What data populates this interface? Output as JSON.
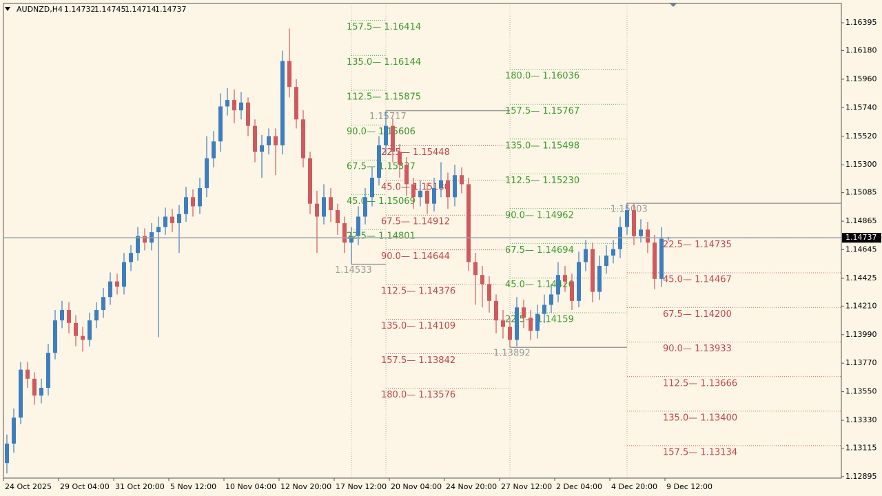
{
  "chart_data": {
    "type": "candlestick",
    "symbol": "AUDNZD,H4",
    "colors": {
      "up": "#3d7ebf",
      "down": "#cf5a5e",
      "pivot": "#9a9a9a"
    },
    "ylim": [
      1.12884,
      1.16544
    ],
    "yticks": [
      1.16395,
      {
        "value": 1.1618,
        "label": "1.16180"
      },
      {
        "value": 1.1596,
        "label": "1.15960"
      },
      {
        "value": 1.1574,
        "label": "1.15740"
      },
      {
        "value": 1.1552,
        "label": "1.15520"
      },
      {
        "value": 1.153,
        "label": "1.15300"
      },
      1.15085,
      1.14865,
      1.14645,
      1.14425,
      {
        "value": 1.1421,
        "label": "1.14210"
      },
      {
        "value": 1.1399,
        "label": "1.13990"
      },
      {
        "value": 1.1377,
        "label": "1.13770"
      },
      {
        "value": 1.1355,
        "label": "1.13550"
      },
      {
        "value": 1.1333,
        "label": "1.13330"
      },
      1.13115,
      1.12895
    ],
    "xticks": [
      {
        "value": 0,
        "label": "24 Oct 2025"
      },
      {
        "value": 8,
        "label": "29 Oct 04:00"
      },
      {
        "value": 16,
        "label": "31 Oct 20:00"
      },
      {
        "value": 24,
        "label": "5 Nov 12:00"
      },
      {
        "value": 32,
        "label": "10 Nov 04:00"
      },
      {
        "value": 40,
        "label": "12 Nov 20:00"
      },
      {
        "value": 48,
        "label": "17 Nov 12:00"
      },
      {
        "value": 56,
        "label": "20 Nov 04:00"
      },
      {
        "value": 64,
        "label": "24 Nov 20:00"
      },
      {
        "value": 72,
        "label": "27 Nov 12:00"
      },
      {
        "value": 80,
        "label": "2 Dec 04:00"
      },
      {
        "value": 88,
        "label": "4 Dec 20:00"
      },
      {
        "value": 96,
        "label": "9 Dec 12:00"
      }
    ],
    "ohlc": [
      [
        1.13,
        1.1322,
        1.1292,
        1.1315
      ],
      [
        1.1315,
        1.1342,
        1.1308,
        1.1335
      ],
      [
        1.1335,
        1.1378,
        1.133,
        1.1372
      ],
      [
        1.1372,
        1.1378,
        1.1358,
        1.1365
      ],
      [
        1.1365,
        1.137,
        1.1345,
        1.1352
      ],
      [
        1.1352,
        1.1365,
        1.1346,
        1.1358
      ],
      [
        1.1358,
        1.1392,
        1.1352,
        1.1385
      ],
      [
        1.1385,
        1.1418,
        1.138,
        1.141
      ],
      [
        1.141,
        1.1425,
        1.1404,
        1.1418
      ],
      [
        1.1418,
        1.1424,
        1.14,
        1.1408
      ],
      [
        1.1408,
        1.1414,
        1.139,
        1.1398
      ],
      [
        1.1398,
        1.1405,
        1.1386,
        1.1395
      ],
      [
        1.1395,
        1.1416,
        1.139,
        1.141
      ],
      [
        1.141,
        1.1424,
        1.1404,
        1.1418
      ],
      [
        1.1418,
        1.1435,
        1.1412,
        1.1428
      ],
      [
        1.1428,
        1.1447,
        1.1422,
        1.144
      ],
      [
        1.144,
        1.1446,
        1.143,
        1.1436
      ],
      [
        1.1436,
        1.1462,
        1.143,
        1.1455
      ],
      [
        1.1455,
        1.1468,
        1.1448,
        1.1462
      ],
      [
        1.1462,
        1.1482,
        1.1456,
        1.1475
      ],
      [
        1.1475,
        1.1481,
        1.1464,
        1.147
      ],
      [
        1.147,
        1.1485,
        1.1464,
        1.1478
      ],
      [
        1.1478,
        1.149,
        1.1397,
        1.1482
      ],
      [
        1.1482,
        1.1497,
        1.1476,
        1.149
      ],
      [
        1.149,
        1.1496,
        1.1478,
        1.1485
      ],
      [
        1.1485,
        1.1499,
        1.1462,
        1.1492
      ],
      [
        1.1492,
        1.1513,
        1.1486,
        1.1505
      ],
      [
        1.1505,
        1.1511,
        1.149,
        1.1498
      ],
      [
        1.1498,
        1.152,
        1.1492,
        1.1512
      ],
      [
        1.1512,
        1.1552,
        1.1505,
        1.1535
      ],
      [
        1.1535,
        1.1556,
        1.1528,
        1.1548
      ],
      [
        1.1548,
        1.1585,
        1.154,
        1.1575
      ],
      [
        1.1575,
        1.1589,
        1.1568,
        1.158
      ],
      [
        1.158,
        1.1588,
        1.1562,
        1.1572
      ],
      [
        1.1572,
        1.1586,
        1.1565,
        1.1578
      ],
      [
        1.1578,
        1.1582,
        1.1552,
        1.156
      ],
      [
        1.156,
        1.1565,
        1.1532,
        1.154
      ],
      [
        1.154,
        1.1553,
        1.152,
        1.1545
      ],
      [
        1.1545,
        1.1558,
        1.1538,
        1.1552
      ],
      [
        1.1552,
        1.1558,
        1.1522,
        1.1545
      ],
      [
        1.1545,
        1.1618,
        1.1538,
        1.161
      ],
      [
        1.161,
        1.1635,
        1.1582,
        1.159
      ],
      [
        1.159,
        1.1596,
        1.1558,
        1.1565
      ],
      [
        1.1565,
        1.1572,
        1.1528,
        1.1535
      ],
      [
        1.1535,
        1.154,
        1.1492,
        1.15
      ],
      [
        1.15,
        1.151,
        1.1462,
        1.149
      ],
      [
        1.149,
        1.1515,
        1.1484,
        1.1505
      ],
      [
        1.1505,
        1.1512,
        1.1486,
        1.1495
      ],
      [
        1.1495,
        1.15,
        1.1476,
        1.1485
      ],
      [
        1.1485,
        1.149,
        1.1462,
        1.147
      ],
      [
        1.147,
        1.1482,
        1.14533,
        1.1475
      ],
      [
        1.1475,
        1.1498,
        1.1468,
        1.149
      ],
      [
        1.149,
        1.1512,
        1.1484,
        1.1505
      ],
      [
        1.1505,
        1.1528,
        1.1498,
        1.152
      ],
      [
        1.152,
        1.1552,
        1.1514,
        1.1545
      ],
      [
        1.1545,
        1.15717,
        1.1538,
        1.156
      ],
      [
        1.156,
        1.1566,
        1.1532,
        1.154
      ],
      [
        1.154,
        1.1546,
        1.152,
        1.153
      ],
      [
        1.153,
        1.1536,
        1.1506,
        1.1515
      ],
      [
        1.1515,
        1.152,
        1.1496,
        1.1505
      ],
      [
        1.1505,
        1.1518,
        1.1498,
        1.151
      ],
      [
        1.151,
        1.1516,
        1.1492,
        1.15
      ],
      [
        1.15,
        1.152,
        1.1494,
        1.1512
      ],
      [
        1.1512,
        1.1532,
        1.1505,
        1.1518
      ],
      [
        1.1518,
        1.1524,
        1.1496,
        1.1505
      ],
      [
        1.1505,
        1.153,
        1.1498,
        1.1522
      ],
      [
        1.1522,
        1.1528,
        1.1508,
        1.1515
      ],
      [
        1.1515,
        1.152,
        1.1448,
        1.1455
      ],
      [
        1.1455,
        1.1462,
        1.1422,
        1.1445
      ],
      [
        1.1445,
        1.1452,
        1.142,
        1.1438
      ],
      [
        1.1438,
        1.1444,
        1.1416,
        1.1425
      ],
      [
        1.1425,
        1.143,
        1.14,
        1.141
      ],
      [
        1.141,
        1.1418,
        1.1396,
        1.1405
      ],
      [
        1.1405,
        1.1412,
        1.13892,
        1.1395
      ],
      [
        1.1395,
        1.1428,
        1.139,
        1.142
      ],
      [
        1.142,
        1.1426,
        1.1404,
        1.1412
      ],
      [
        1.1412,
        1.1418,
        1.1395,
        1.1402
      ],
      [
        1.1402,
        1.1422,
        1.1396,
        1.1415
      ],
      [
        1.1415,
        1.143,
        1.1408,
        1.1422
      ],
      [
        1.1422,
        1.1438,
        1.1416,
        1.143
      ],
      [
        1.143,
        1.1455,
        1.1424,
        1.1445
      ],
      [
        1.1445,
        1.1452,
        1.1432,
        1.144
      ],
      [
        1.144,
        1.1446,
        1.1418,
        1.1425
      ],
      [
        1.1425,
        1.1463,
        1.142,
        1.1455
      ],
      [
        1.1455,
        1.1472,
        1.1448,
        1.1465
      ],
      [
        1.1465,
        1.147,
        1.1424,
        1.1432
      ],
      [
        1.1432,
        1.146,
        1.1426,
        1.1452
      ],
      [
        1.1452,
        1.1468,
        1.1446,
        1.146
      ],
      [
        1.146,
        1.1472,
        1.1454,
        1.1465
      ],
      [
        1.1465,
        1.149,
        1.1458,
        1.1482
      ],
      [
        1.1482,
        1.15003,
        1.1476,
        1.1495
      ],
      [
        1.1495,
        1.15,
        1.1468,
        1.1475
      ],
      [
        1.1475,
        1.1488,
        1.147,
        1.148
      ],
      [
        1.148,
        1.1486,
        1.1462,
        1.147
      ],
      [
        1.147,
        1.1476,
        1.1434,
        1.1442
      ],
      [
        1.1442,
        1.1482,
        1.1436,
        1.1473
      ],
      [
        1.14732,
        1.14745,
        1.14714,
        1.14737
      ]
    ],
    "gann": [
      {
        "bar": 50,
        "color": "#3a9a2a",
        "pivot": 1.14533,
        "levels": [
          {
            "value": 1.14801,
            "label": "22.5— 1.14801"
          },
          {
            "value": 1.15069,
            "label": "45.0— 1.15069"
          },
          {
            "value": 1.15337,
            "label": "67.5— 1.15337"
          },
          {
            "value": 1.15606,
            "label": "90.0— 1.15606"
          },
          {
            "value": 1.15875,
            "label": "112.5— 1.15875"
          },
          {
            "value": 1.16144,
            "label": "135.0— 1.16144"
          },
          {
            "value": 1.16414,
            "label": "157.5— 1.16414"
          }
        ]
      },
      {
        "bar": 55,
        "color": "#c0464a",
        "pivot": 1.15717,
        "levels": [
          {
            "value": 1.15448,
            "label": "22.5— 1.15448"
          },
          {
            "value": 1.1518,
            "label": "45.0— 1.15180"
          },
          {
            "value": 1.14912,
            "label": "67.5— 1.14912"
          },
          {
            "value": 1.14644,
            "label": "90.0— 1.14644"
          },
          {
            "value": 1.14376,
            "label": "112.5— 1.14376"
          },
          {
            "value": 1.14109,
            "label": "135.0— 1.14109"
          },
          {
            "value": 1.13842,
            "label": "157.5— 1.13842"
          },
          {
            "value": 1.13576,
            "label": "180.0— 1.13576"
          }
        ]
      },
      {
        "bar": 73,
        "color": "#3a9a2a",
        "pivot": 1.13892,
        "levels": [
          {
            "value": 1.14159,
            "label": "22.5— 1.14159"
          },
          {
            "value": 1.14426,
            "label": "45.0— 1.14426"
          },
          {
            "value": 1.14694,
            "label": "67.5— 1.14694"
          },
          {
            "value": 1.14962,
            "label": "90.0— 1.14962"
          },
          {
            "value": 1.1523,
            "label": "112.5— 1.15230"
          },
          {
            "value": 1.15498,
            "label": "135.0— 1.15498"
          },
          {
            "value": 1.15767,
            "label": "157.5— 1.15767"
          },
          {
            "value": 1.16036,
            "label": "180.0— 1.16036"
          }
        ]
      },
      {
        "bar": 90,
        "color": "#c0464a",
        "pivot": 1.15003,
        "levels": [
          {
            "value": 1.14735,
            "label": "22.5— 1.14735"
          },
          {
            "value": 1.14467,
            "label": "45.0— 1.14467"
          },
          {
            "value": 1.142,
            "label": "67.5— 1.14200"
          },
          {
            "value": 1.13933,
            "label": "90.0— 1.13933"
          },
          {
            "value": 1.13666,
            "label": "112.5— 1.13666"
          },
          {
            "value": 1.134,
            "label": "135.0— 1.13400"
          },
          {
            "value": 1.13134,
            "label": "157.5— 1.13134"
          }
        ]
      }
    ]
  }
}
